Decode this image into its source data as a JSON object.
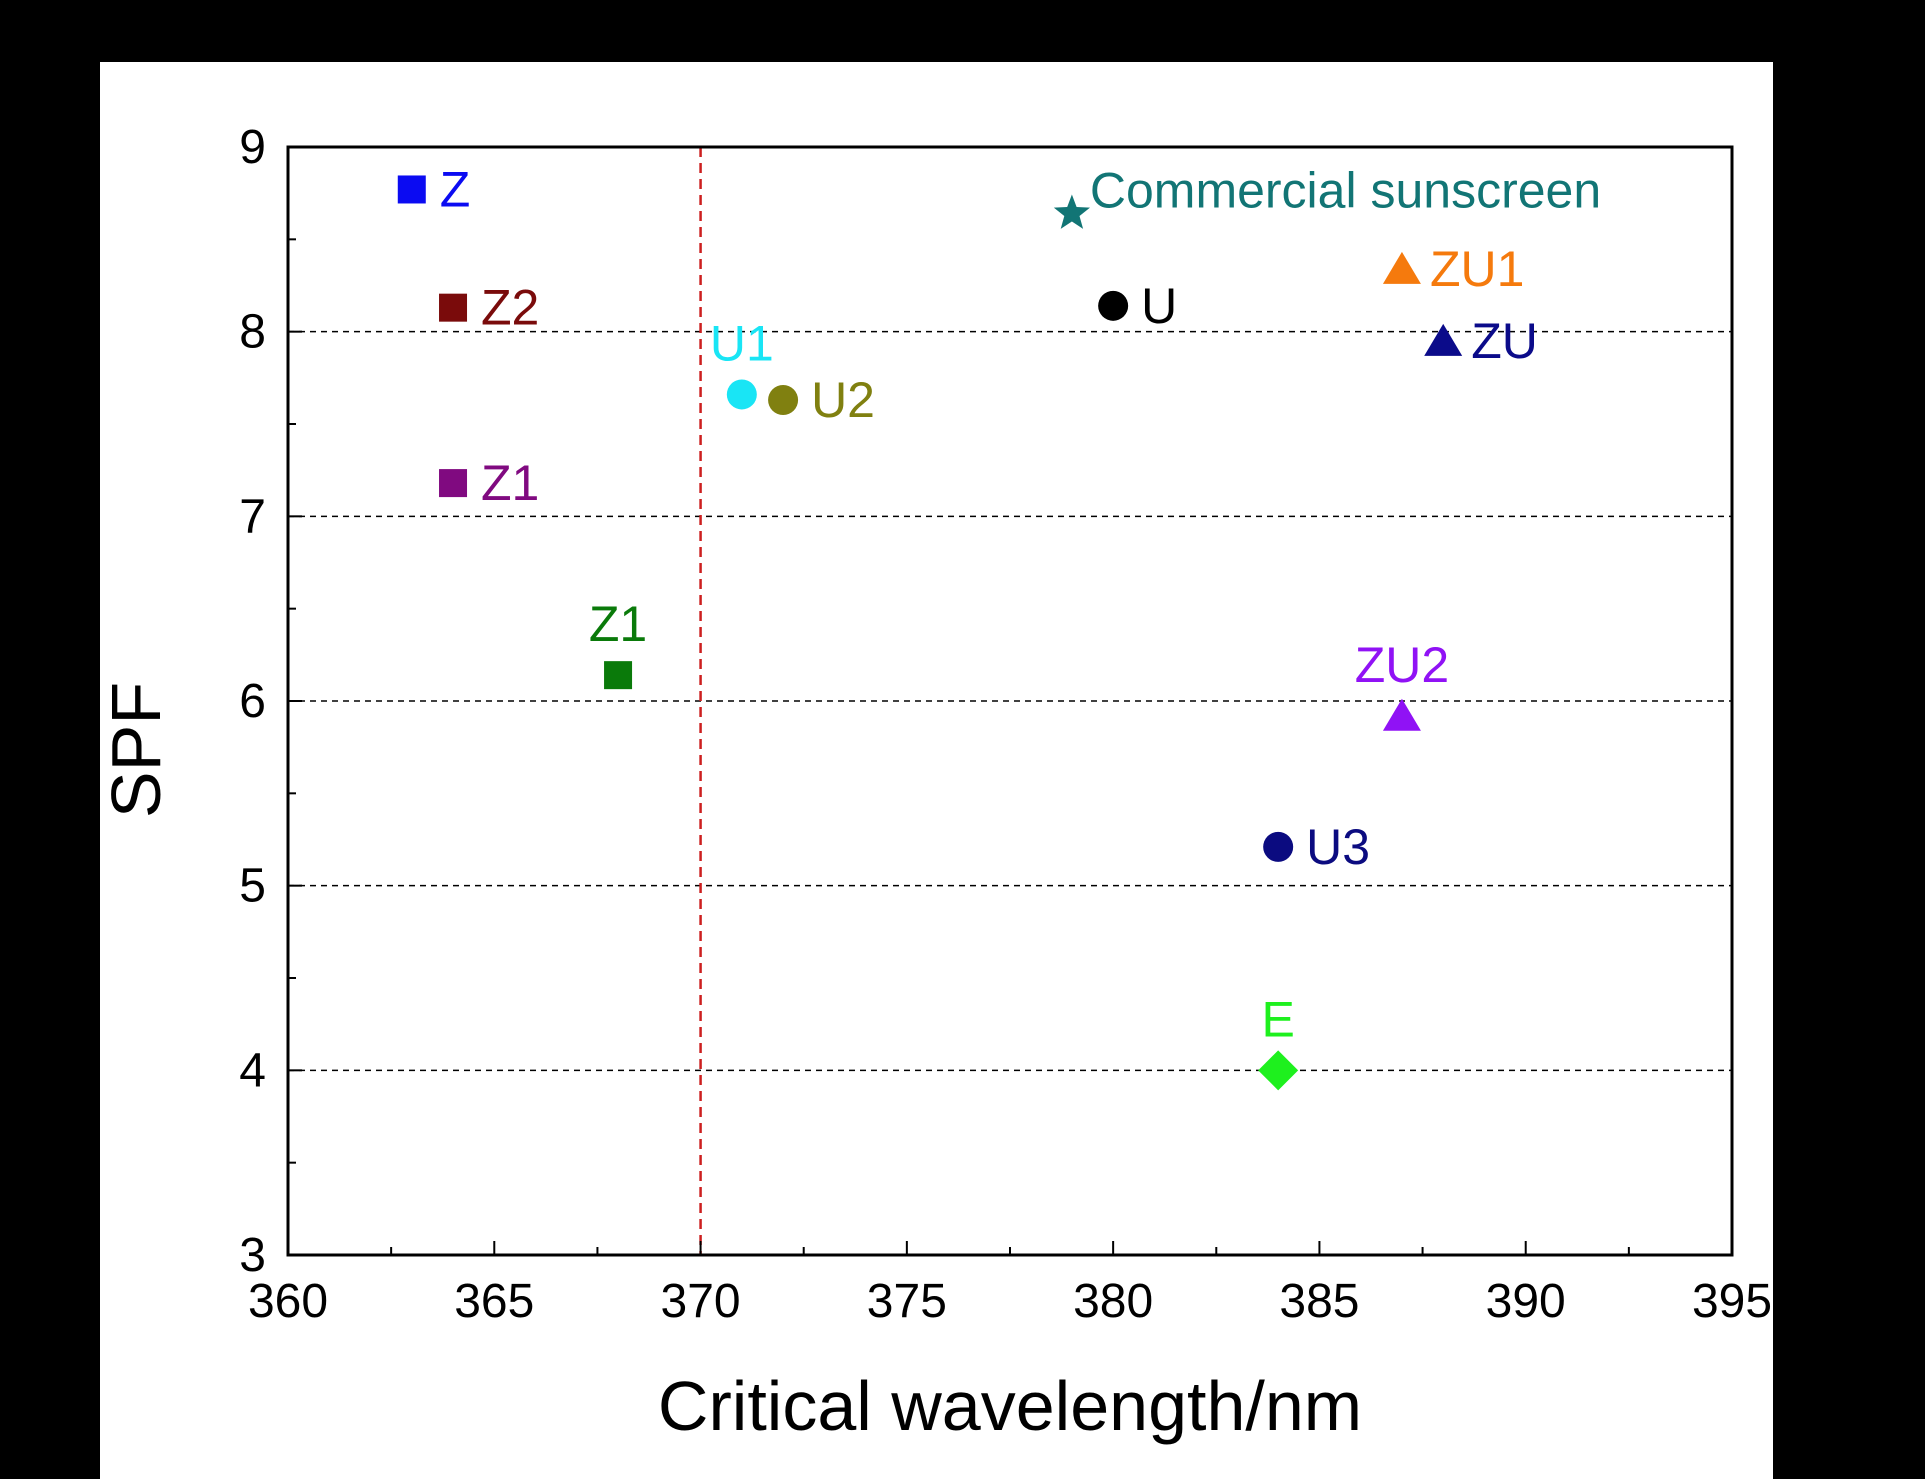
{
  "chart_data": {
    "type": "scatter",
    "title": "",
    "xlabel": "Critical wavelength/nm",
    "ylabel": "SPF",
    "xlim": [
      360,
      395
    ],
    "ylim": [
      3,
      9
    ],
    "xticks": [
      "360",
      "365",
      "370",
      "375",
      "380",
      "385",
      "390",
      "395"
    ],
    "yticks": [
      "3",
      "4",
      "5",
      "6",
      "7",
      "8",
      "9"
    ],
    "grid": "horizontal dashed at 4, 5, 6, 7, 8",
    "reference_line": {
      "x": 370,
      "style": "dashed",
      "color": "#cc1f1f"
    },
    "points": [
      {
        "label": "Z",
        "x": 363,
        "y": 8.77,
        "marker": "square",
        "color": "#0b0bf2",
        "label_pos": "right"
      },
      {
        "label": "Z2",
        "x": 364,
        "y": 8.13,
        "marker": "square",
        "color": "#7a0b0b",
        "label_pos": "right"
      },
      {
        "label": "Z1",
        "x": 364,
        "y": 7.18,
        "marker": "square",
        "color": "#800a80",
        "label_pos": "right"
      },
      {
        "label": "Z1",
        "x": 368,
        "y": 6.14,
        "marker": "square",
        "color": "#0a7a0a",
        "label_pos": "above"
      },
      {
        "label": "U1",
        "x": 371,
        "y": 7.66,
        "marker": "circle",
        "color": "#19e5f5",
        "label_pos": "above"
      },
      {
        "label": "U2",
        "x": 372,
        "y": 7.63,
        "marker": "circle",
        "color": "#808010",
        "label_pos": "right"
      },
      {
        "label": "Commercial sunscreen",
        "x": 379,
        "y": 8.64,
        "marker": "star",
        "color": "#127575",
        "label_pos": "right-up"
      },
      {
        "label": "U",
        "x": 380,
        "y": 8.14,
        "marker": "circle",
        "color": "#000000",
        "label_pos": "right"
      },
      {
        "label": "U3",
        "x": 384,
        "y": 5.21,
        "marker": "circle",
        "color": "#0b0b80",
        "label_pos": "right"
      },
      {
        "label": "E",
        "x": 384,
        "y": 4.0,
        "marker": "diamond",
        "color": "#1ef01e",
        "label_pos": "above"
      },
      {
        "label": "ZU1",
        "x": 387,
        "y": 8.34,
        "marker": "triangle",
        "color": "#f57a0d",
        "label_pos": "right"
      },
      {
        "label": "ZU2",
        "x": 387,
        "y": 5.92,
        "marker": "triangle",
        "color": "#9012f5",
        "label_pos": "above"
      },
      {
        "label": "ZU",
        "x": 388,
        "y": 7.95,
        "marker": "triangle",
        "color": "#0b0b8a",
        "label_pos": "right"
      }
    ]
  }
}
